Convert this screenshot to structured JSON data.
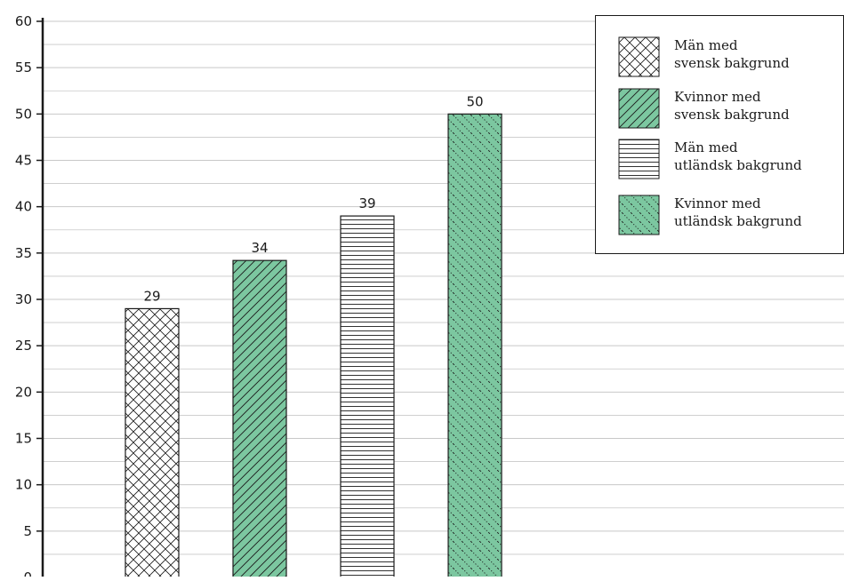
{
  "chart_data": {
    "type": "bar",
    "title": "",
    "xlabel": "",
    "ylabel": "",
    "ylim": [
      0,
      60
    ],
    "yticks": [
      0,
      5,
      10,
      15,
      20,
      25,
      30,
      35,
      40,
      45,
      50,
      55,
      60
    ],
    "grid": true,
    "legend_position": "top-right",
    "series": [
      {
        "name": "Män med svensk bakgrund",
        "legend_lines": [
          "Män med",
          "svensk bakgrund"
        ],
        "value": 29,
        "label": "29",
        "fill": "#ffffff",
        "pattern": "crosshatch"
      },
      {
        "name": "Kvinnor med svensk bakgrund",
        "legend_lines": [
          "Kvinnor med",
          "svensk bakgrund"
        ],
        "value": 34.2,
        "label": "34",
        "fill": "#7cc7a0",
        "pattern": "diagonal"
      },
      {
        "name": "Män med utländsk bakgrund",
        "legend_lines": [
          "Män med",
          "utländsk bakgrund"
        ],
        "value": 39,
        "label": "39",
        "fill": "#ffffff",
        "pattern": "horizontal"
      },
      {
        "name": "Kvinnor med utländsk bakgrund",
        "legend_lines": [
          "Kvinnor med",
          "utländsk bakgrund"
        ],
        "value": 50,
        "label": "50",
        "fill": "#7cc7a0",
        "pattern": "dotted-diagonal"
      }
    ],
    "colors": {
      "green": "#7cc7a0",
      "axis": "#1a1a1a",
      "grid": "#c8c8c8"
    }
  }
}
